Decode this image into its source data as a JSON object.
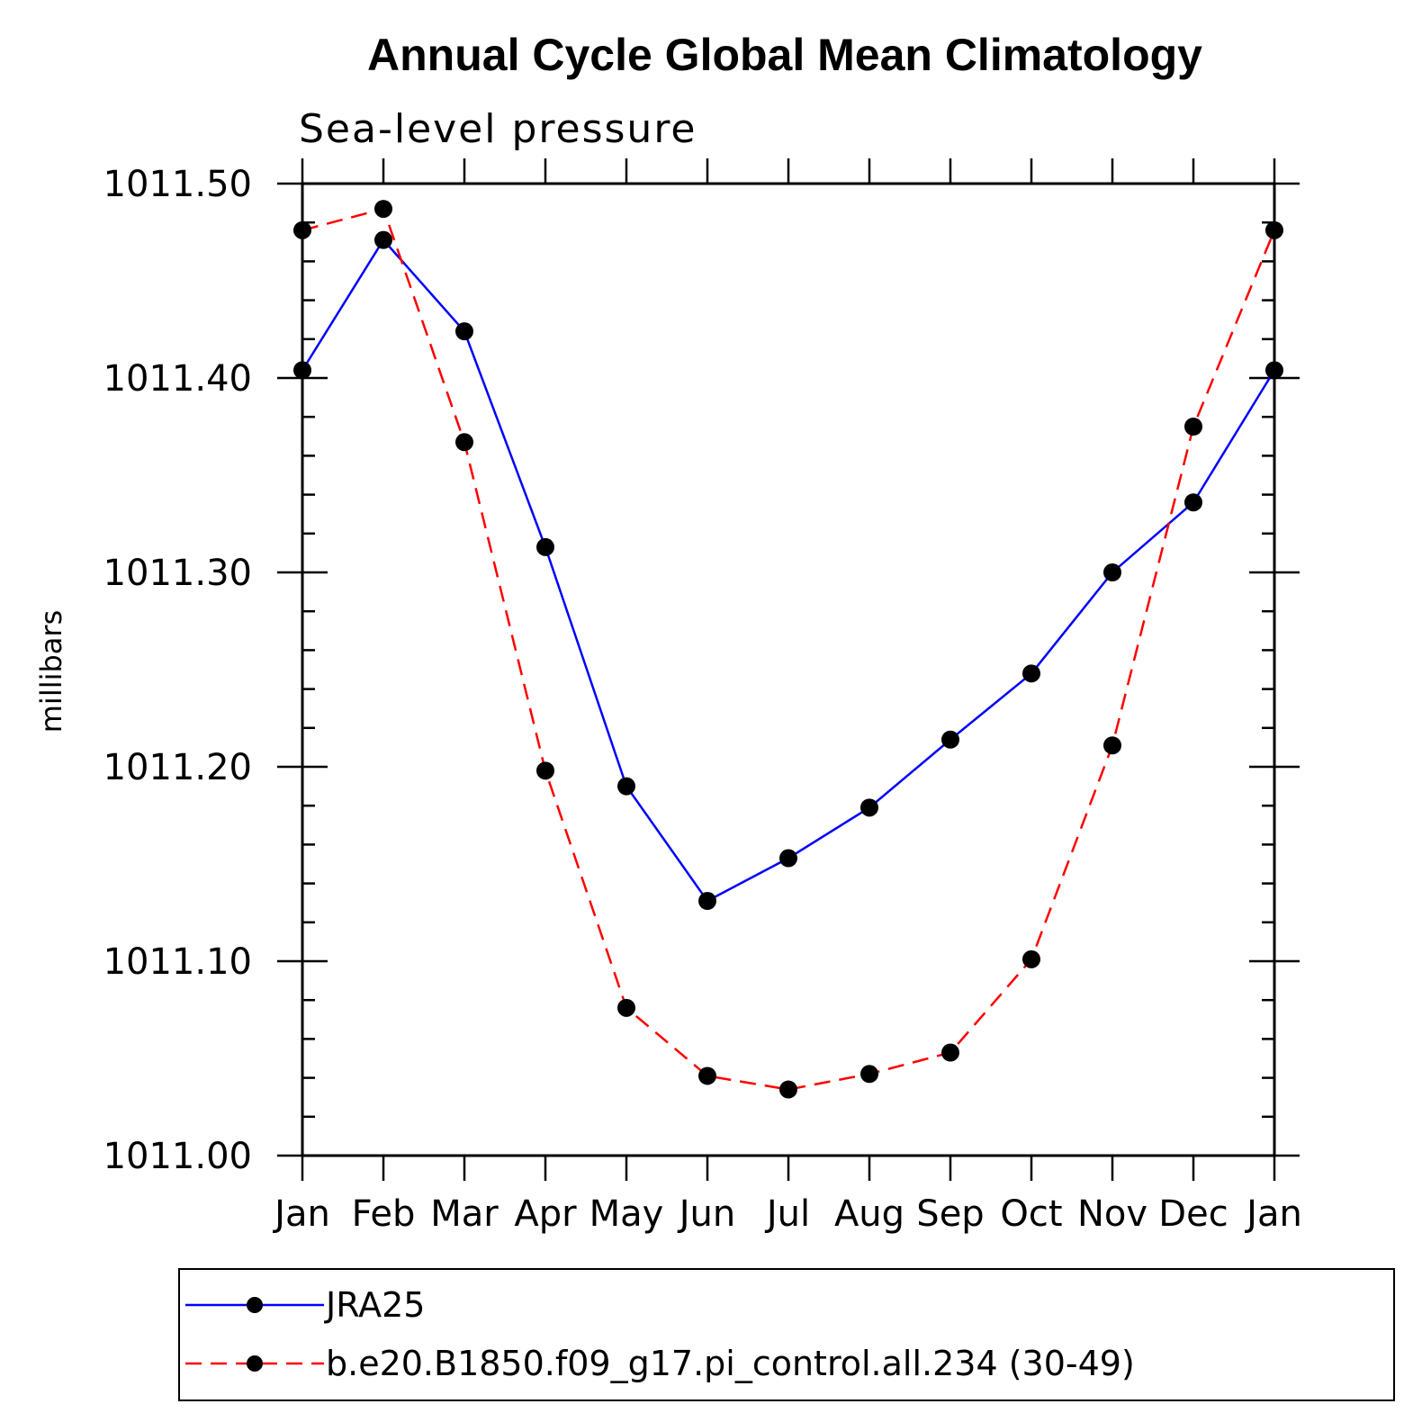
{
  "chart_data": {
    "type": "line",
    "title": "Annual Cycle Global Mean Climatology",
    "subtitle": "Sea-level pressure",
    "ylabel": "millibars",
    "xlabel": "",
    "categories": [
      "Jan",
      "Feb",
      "Mar",
      "Apr",
      "May",
      "Jun",
      "Jul",
      "Aug",
      "Sep",
      "Oct",
      "Nov",
      "Dec",
      "Jan"
    ],
    "ylim": [
      1011.0,
      1011.5
    ],
    "yticks": [
      "1011.00",
      "1011.10",
      "1011.20",
      "1011.30",
      "1011.40",
      "1011.50"
    ],
    "yticks_values": [
      1011.0,
      1011.1,
      1011.2,
      1011.3,
      1011.4,
      1011.5
    ],
    "y_minor_step": 0.02,
    "legend_position": "bottom",
    "series": [
      {
        "name": "JRA25",
        "color": "#0000ff",
        "dash": "solid",
        "marker": "filled-circle",
        "values": [
          1011.404,
          1011.471,
          1011.424,
          1011.313,
          1011.19,
          1011.131,
          1011.153,
          1011.179,
          1011.214,
          1011.248,
          1011.3,
          1011.336,
          1011.404
        ]
      },
      {
        "name": "b.e20.B1850.f09_g17.pi_control.all.234 (30-49)",
        "color": "#ff0000",
        "dash": "dashed",
        "marker": "filled-circle",
        "values": [
          1011.476,
          1011.487,
          1011.367,
          1011.198,
          1011.076,
          1011.041,
          1011.034,
          1011.042,
          1011.053,
          1011.101,
          1011.211,
          1011.375,
          1011.476
        ]
      }
    ]
  }
}
